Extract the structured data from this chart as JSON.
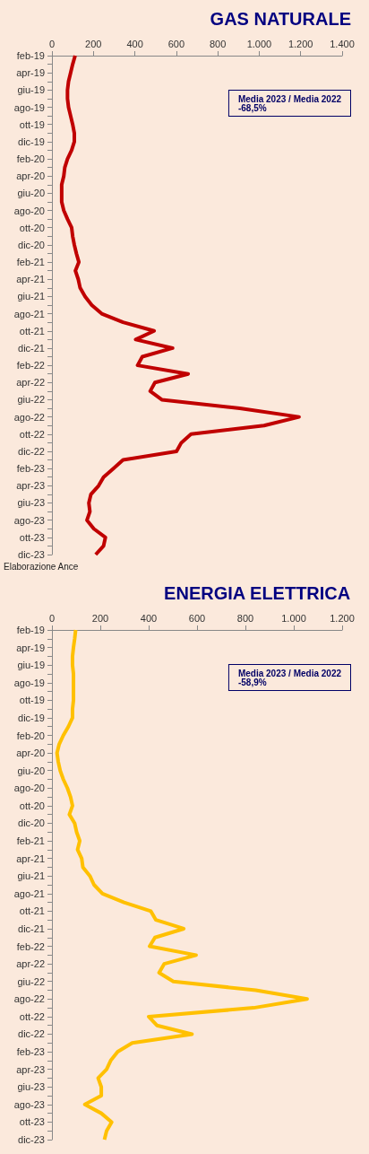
{
  "chart_data": [
    {
      "type": "line",
      "orientation": "horizontal",
      "title": "GAS NATURALE",
      "color": "#c00000",
      "marker": "none",
      "categories": [
        "feb-19",
        null,
        "apr-19",
        null,
        "giu-19",
        null,
        "ago-19",
        null,
        "ott-19",
        null,
        "dic-19",
        null,
        "feb-20",
        null,
        "apr-20",
        null,
        "giu-20",
        null,
        "ago-20",
        null,
        "ott-20",
        null,
        "dic-20",
        null,
        "feb-21",
        null,
        "apr-21",
        null,
        "giu-21",
        null,
        "ago-21",
        null,
        "ott-21",
        null,
        "dic-21",
        null,
        "feb-22",
        null,
        "apr-22",
        null,
        "giu-22",
        null,
        "ago-22",
        null,
        "ott-22",
        null,
        "dic-22",
        null,
        "feb-23",
        null,
        "apr-23",
        null,
        "giu-23",
        null,
        "ago-23",
        null,
        "ott-23",
        null,
        "dic-23"
      ],
      "values": [
        112,
        100,
        90,
        80,
        75,
        75,
        80,
        90,
        100,
        108,
        108,
        95,
        75,
        62,
        57,
        47,
        47,
        47,
        57,
        75,
        95,
        100,
        108,
        118,
        130,
        113,
        127,
        136,
        160,
        192,
        240,
        343,
        493,
        404,
        582,
        436,
        413,
        657,
        497,
        474,
        530,
        906,
        1192,
        1023,
        671,
        624,
        601,
        343,
        296,
        249,
        225,
        188,
        178,
        183,
        169,
        202,
        258,
        249,
        211
      ],
      "xlim": [
        0,
        1400
      ],
      "xticks": [
        0,
        200,
        400,
        600,
        800,
        {
          "value": 1000,
          "label": "1.000"
        },
        {
          "value": 1200,
          "label": "1.200"
        },
        {
          "value": 1400,
          "label": "1.400"
        }
      ],
      "annotations": [
        "Media 2023 / Media 2022\n-68,5%",
        "Elaborazione Ance"
      ]
    },
    {
      "type": "line",
      "orientation": "horizontal",
      "title": "ENERGIA ELETTRICA",
      "color": "#ffc000",
      "marker": "none",
      "categories": [
        "feb-19",
        null,
        "apr-19",
        null,
        "giu-19",
        null,
        "ago-19",
        null,
        "ott-19",
        null,
        "dic-19",
        null,
        "feb-20",
        null,
        "apr-20",
        null,
        "giu-20",
        null,
        "ago-20",
        null,
        "ott-20",
        null,
        "dic-20",
        null,
        "feb-21",
        null,
        "apr-21",
        null,
        "giu-21",
        null,
        "ago-21",
        null,
        "ott-21",
        null,
        "dic-21",
        null,
        "feb-22",
        null,
        "apr-22",
        null,
        "giu-22",
        null,
        "ago-22",
        null,
        "ott-22",
        null,
        "dic-22",
        null,
        "feb-23",
        null,
        "apr-23",
        null,
        "giu-23",
        null,
        "ago-23",
        null,
        "ott-23",
        null,
        "dic-23"
      ],
      "values": [
        98,
        94,
        89,
        85,
        85,
        89,
        89,
        89,
        89,
        85,
        85,
        68,
        47,
        30,
        21,
        26,
        34,
        47,
        64,
        77,
        85,
        72,
        94,
        102,
        115,
        106,
        123,
        128,
        157,
        174,
        209,
        298,
        409,
        430,
        545,
        426,
        404,
        596,
        464,
        443,
        502,
        843,
        1055,
        834,
        400,
        434,
        579,
        332,
        272,
        243,
        226,
        191,
        204,
        204,
        136,
        204,
        247,
        226,
        217
      ],
      "xlim": [
        0,
        1200
      ],
      "xticks": [
        0,
        200,
        400,
        600,
        800,
        {
          "value": 1000,
          "label": "1.000"
        },
        {
          "value": 1200,
          "label": "1.200"
        }
      ],
      "annotations": [
        "Media 2023 / Media 2022\n-58,9%"
      ]
    }
  ]
}
